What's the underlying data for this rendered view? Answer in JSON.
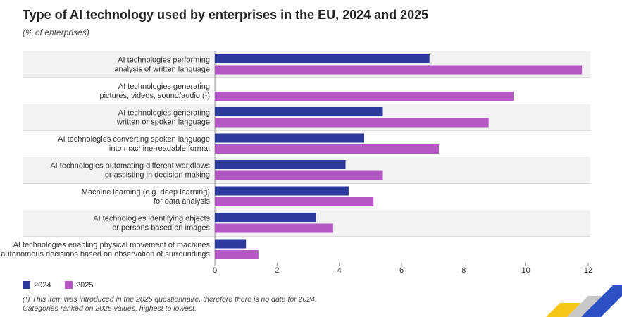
{
  "chart_data": {
    "type": "hbar",
    "title": "Type of AI technology used by enterprises in the EU, 2024 and 2025",
    "subtitle": "(% of enterprises)",
    "categories": [
      "AI technologies performing\nanalysis of written language",
      "AI technologies generating\npictures, videos, sound/audio (¹)",
      "AI technologies generating\nwritten or spoken language",
      "AI technologies converting spoken language\ninto machine-readable format",
      "AI technologies automating different workflows\nor assisting in decision making",
      "Machine learning (e.g. deep learning)\nfor data analysis",
      "AI technologies identifying objects\nor persons based on images",
      "AI technologies enabling physical movement of machines\nvia autonomous decisions based on observation of surroundings"
    ],
    "series": [
      {
        "name": "2024",
        "color": "#2b3a9b",
        "values": [
          6.9,
          null,
          5.4,
          4.8,
          4.2,
          4.3,
          3.25,
          1.0
        ]
      },
      {
        "name": "2025",
        "color": "#b556c5",
        "values": [
          11.8,
          9.6,
          8.8,
          7.2,
          5.4,
          5.1,
          3.8,
          1.4
        ]
      }
    ],
    "xlim": [
      0,
      12
    ],
    "xticks": [
      0,
      2,
      4,
      6,
      8,
      10,
      12
    ],
    "notes": [
      "(¹) This item was introduced in the 2025 questionnaire, therefore there is no data for 2024.",
      "Categories ranked on 2025 values, highest to lowest."
    ]
  }
}
